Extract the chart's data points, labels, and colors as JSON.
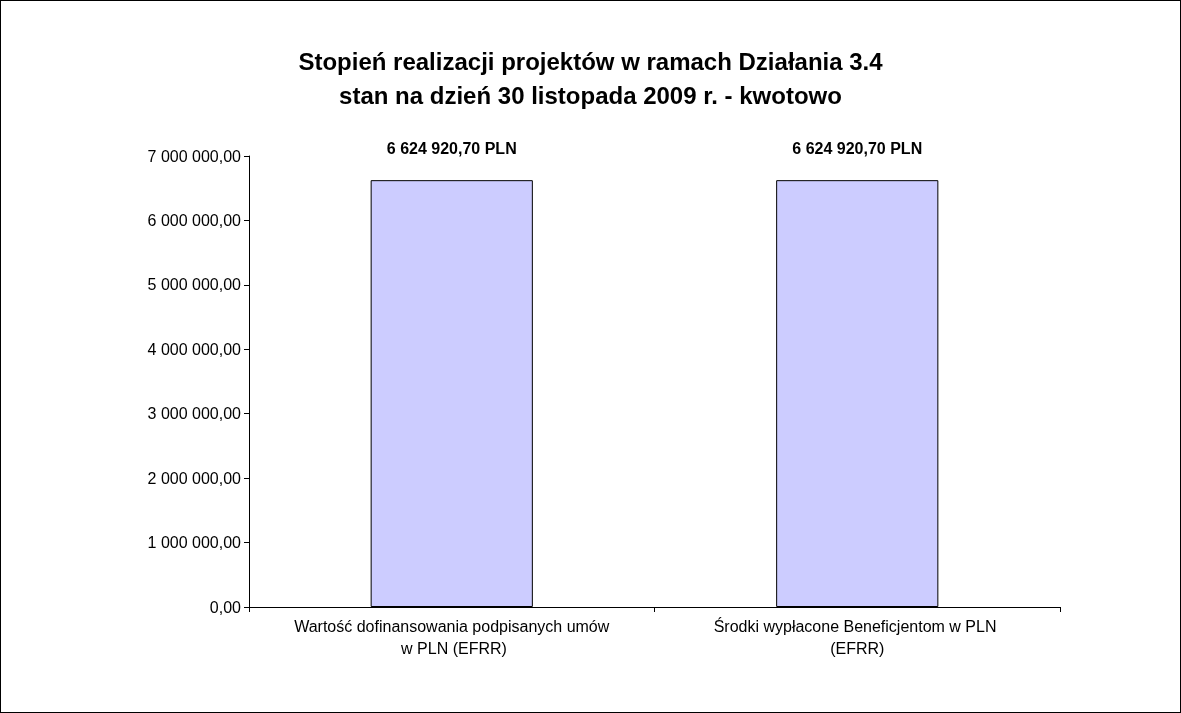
{
  "chart_data": {
    "type": "bar",
    "title": "Stopień realizacji projektów w ramach Działania 3.4\nstan na dzień 30 listopada 2009 r. - kwotowo",
    "categories": [
      "Wartość dofinansowania podpisanych umów w PLN (EFRR)",
      "Środki wypłacone Beneficjentom w PLN (EFRR)"
    ],
    "values": [
      6624920.7,
      6624920.7
    ],
    "value_labels": [
      "6 624 920,70 PLN",
      "6 624 920,70 PLN"
    ],
    "color": "#ccccff",
    "ylim": [
      0,
      7000000
    ],
    "yticks": [
      {
        "value": 0,
        "label": "0,00"
      },
      {
        "value": 1000000,
        "label": "1 000 000,00"
      },
      {
        "value": 2000000,
        "label": "2 000 000,00"
      },
      {
        "value": 3000000,
        "label": "3 000 000,00"
      },
      {
        "value": 4000000,
        "label": "4 000 000,00"
      },
      {
        "value": 5000000,
        "label": "5 000 000,00"
      },
      {
        "value": 6000000,
        "label": "6 000 000,00"
      },
      {
        "value": 7000000,
        "label": "7 000 000,00"
      }
    ],
    "grid": false
  }
}
